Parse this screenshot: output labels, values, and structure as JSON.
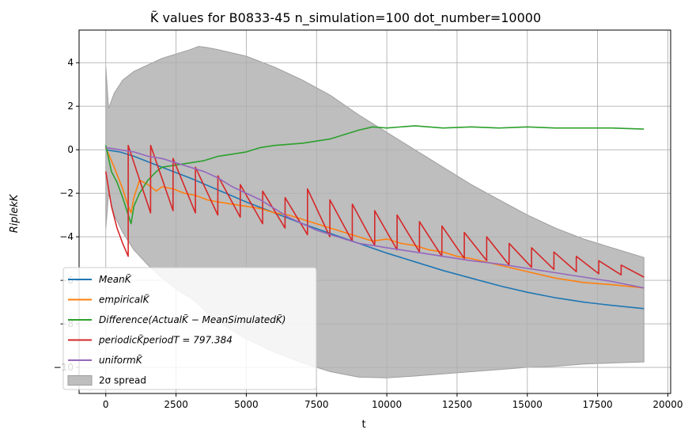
{
  "chart_data": {
    "type": "line",
    "title": "K̃ values for B0833-45 n_simulation=100 dot_number=10000",
    "xlabel": "t",
    "ylabel": "RiplekK",
    "xlim": [
      -950,
      20100
    ],
    "ylim": [
      -11.2,
      5.5
    ],
    "x_ticks": [
      0,
      2500,
      5000,
      7500,
      10000,
      12500,
      15000,
      17500,
      20000
    ],
    "x_tick_labels": [
      "0",
      "2500",
      "5000",
      "7500",
      "10000",
      "12500",
      "15000",
      "17500",
      "20000"
    ],
    "y_ticks": [
      4,
      2,
      0,
      -2,
      -4,
      -6,
      -8,
      -10
    ],
    "y_tick_labels": [
      "4",
      "2",
      "0",
      "−2",
      "−4",
      "−6",
      "−8",
      "−10"
    ],
    "grid": true,
    "legend_position": "lower-left",
    "band": {
      "name": "2σ spread",
      "color": "#bebebe",
      "edge_color": "#9e9e9e",
      "x": [
        0,
        100,
        300,
        600,
        1000,
        1500,
        2000,
        2500,
        3000,
        3300,
        3600,
        4000,
        5000,
        6000,
        7000,
        8000,
        9000,
        10000,
        11000,
        12000,
        13000,
        14000,
        15000,
        16000,
        17000,
        18000,
        19150
      ],
      "upper": [
        3.8,
        1.9,
        2.6,
        3.2,
        3.6,
        3.9,
        4.2,
        4.4,
        4.6,
        4.75,
        4.7,
        4.6,
        4.3,
        3.8,
        3.2,
        2.5,
        1.6,
        0.8,
        0.0,
        -0.8,
        -1.6,
        -2.3,
        -3.0,
        -3.6,
        -4.1,
        -4.5,
        -4.95
      ],
      "lower": [
        -3.6,
        -2.0,
        -3.0,
        -3.8,
        -4.6,
        -5.3,
        -5.9,
        -6.4,
        -6.8,
        -7.1,
        -7.5,
        -7.9,
        -8.7,
        -9.3,
        -9.8,
        -10.2,
        -10.45,
        -10.48,
        -10.4,
        -10.3,
        -10.2,
        -10.1,
        -10.0,
        -9.95,
        -9.85,
        -9.8,
        -9.75
      ]
    },
    "series": [
      {
        "name": "MeanK̃",
        "color": "#1f77b4",
        "x": [
          0,
          500,
          1000,
          2000,
          3000,
          4000,
          5000,
          6000,
          7000,
          8000,
          9000,
          10000,
          11000,
          12000,
          13000,
          14000,
          15000,
          16000,
          17000,
          18000,
          19150
        ],
        "y": [
          0.0,
          -0.1,
          -0.3,
          -0.8,
          -1.3,
          -1.85,
          -2.4,
          -2.9,
          -3.4,
          -3.85,
          -4.3,
          -4.75,
          -5.15,
          -5.55,
          -5.9,
          -6.25,
          -6.55,
          -6.8,
          -7.0,
          -7.15,
          -7.3
        ]
      },
      {
        "name": "empiricalK̃",
        "color": "#ff7f0e",
        "x": [
          0,
          300,
          600,
          800,
          900,
          1000,
          1200,
          1500,
          1800,
          2000,
          2400,
          2800,
          3200,
          3600,
          4000,
          4500,
          5000,
          5500,
          6000,
          6500,
          7000,
          7500,
          8000,
          8500,
          9000,
          9500,
          10000,
          10500,
          11000,
          11500,
          12000,
          12500,
          13000,
          14000,
          15000,
          16000,
          17000,
          18000,
          19150
        ],
        "y": [
          0.1,
          -0.8,
          -1.8,
          -2.6,
          -2.9,
          -2.2,
          -1.4,
          -1.6,
          -1.9,
          -1.7,
          -1.8,
          -2.0,
          -2.1,
          -2.3,
          -2.4,
          -2.5,
          -2.6,
          -2.7,
          -2.9,
          -3.0,
          -3.2,
          -3.4,
          -3.6,
          -3.8,
          -4.0,
          -4.2,
          -4.1,
          -4.3,
          -4.4,
          -4.6,
          -4.7,
          -4.9,
          -5.0,
          -5.3,
          -5.6,
          -5.9,
          -6.1,
          -6.2,
          -6.35
        ]
      },
      {
        "name": "Difference(ActualK̃ − MeanSimulatedK̃)",
        "color": "#2ca02c",
        "x": [
          0,
          200,
          400,
          600,
          800,
          900,
          1000,
          1200,
          1500,
          1800,
          2000,
          2500,
          3000,
          3500,
          4000,
          4500,
          5000,
          5500,
          6000,
          6500,
          7000,
          7500,
          8000,
          8500,
          9000,
          9500,
          10000,
          11000,
          12000,
          13000,
          14000,
          15000,
          16000,
          17000,
          18000,
          19150
        ],
        "y": [
          0.2,
          -1.0,
          -1.5,
          -2.2,
          -3.0,
          -3.4,
          -2.6,
          -2.0,
          -1.4,
          -1.0,
          -0.8,
          -0.7,
          -0.6,
          -0.5,
          -0.3,
          -0.2,
          -0.1,
          0.1,
          0.2,
          0.25,
          0.3,
          0.4,
          0.5,
          0.7,
          0.9,
          1.05,
          1.0,
          1.1,
          1.0,
          1.05,
          1.0,
          1.05,
          1.0,
          1.0,
          1.0,
          0.95
        ]
      },
      {
        "name": "periodicK̃periodT = 797.384",
        "color": "#d62728",
        "x": [
          0,
          200,
          400,
          600,
          797,
          798,
          1595,
          1596,
          2392,
          2393,
          3190,
          3191,
          3987,
          3988,
          4784,
          4785,
          5582,
          5583,
          6379,
          6380,
          7176,
          7177,
          7973,
          7974,
          8771,
          8772,
          9568,
          9569,
          10365,
          10366,
          11162,
          11163,
          11960,
          11961,
          12757,
          12758,
          13554,
          13555,
          14352,
          14353,
          15149,
          15150,
          15946,
          15947,
          16743,
          16744,
          17541,
          17542,
          18338,
          18339,
          19150
        ],
        "y": [
          -1.0,
          -2.6,
          -3.6,
          -4.3,
          -4.9,
          0.2,
          -2.9,
          0.2,
          -2.8,
          -0.4,
          -2.9,
          -0.8,
          -3.0,
          -1.2,
          -3.1,
          -1.6,
          -3.4,
          -1.9,
          -3.6,
          -2.2,
          -3.9,
          -1.8,
          -4.0,
          -2.3,
          -4.2,
          -2.5,
          -4.4,
          -2.8,
          -4.6,
          -3.0,
          -4.7,
          -3.3,
          -4.9,
          -3.5,
          -5.0,
          -3.8,
          -5.1,
          -4.0,
          -5.3,
          -4.3,
          -5.4,
          -4.5,
          -5.5,
          -4.7,
          -5.6,
          -4.9,
          -5.7,
          -5.1,
          -5.75,
          -5.3,
          -5.85
        ]
      },
      {
        "name": "uniformK̃",
        "color": "#9467bd",
        "x": [
          0,
          500,
          1000,
          1500,
          2000,
          2500,
          3000,
          3500,
          4000,
          4500,
          5000,
          5500,
          6000,
          6500,
          7000,
          7500,
          8000,
          8500,
          9000,
          9500,
          10000,
          11000,
          12000,
          13000,
          14000,
          15000,
          16000,
          17000,
          18000,
          19150
        ],
        "y": [
          0.1,
          0.0,
          -0.1,
          -0.3,
          -0.4,
          -0.6,
          -0.8,
          -1.0,
          -1.3,
          -1.7,
          -2.0,
          -2.3,
          -2.7,
          -3.1,
          -3.4,
          -3.7,
          -3.9,
          -4.1,
          -4.3,
          -4.4,
          -4.5,
          -4.7,
          -4.9,
          -5.1,
          -5.25,
          -5.45,
          -5.65,
          -5.85,
          -6.05,
          -6.35
        ]
      }
    ]
  }
}
